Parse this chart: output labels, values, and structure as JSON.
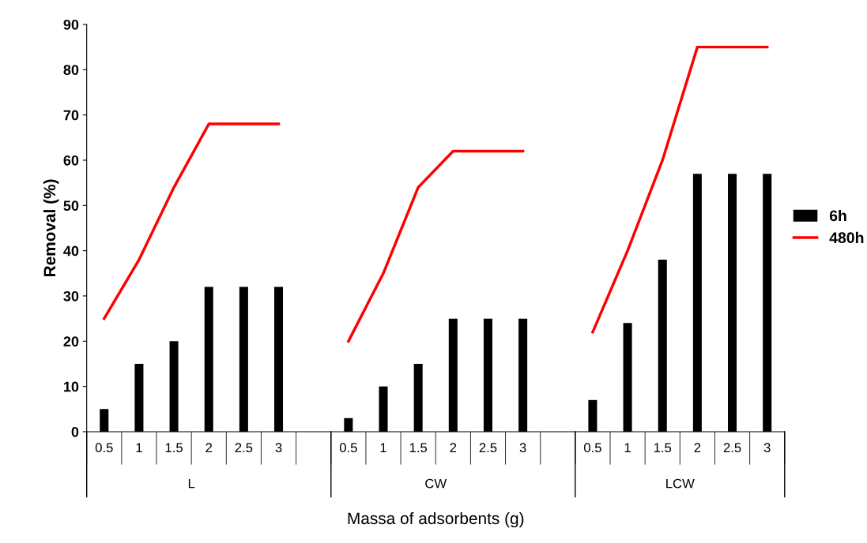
{
  "chart_data": {
    "type": "bar",
    "xlabel": "Massa of adsorbents (g)",
    "ylabel": "Removal (%)",
    "categories": [
      "0.5",
      "1",
      "1.5",
      "2",
      "2.5",
      "3",
      null,
      "0.5",
      "1",
      "1.5",
      "2",
      "2.5",
      "3",
      null,
      "0.5",
      "1",
      "1.5",
      "2",
      "2.5",
      "3"
    ],
    "series": [
      {
        "name": "6h",
        "color": "#000000",
        "values": [
          5,
          15,
          20,
          32,
          32,
          32,
          null,
          3,
          10,
          15,
          25,
          25,
          25,
          null,
          7,
          24,
          38,
          57,
          57,
          57
        ]
      },
      {
        "name": "480h",
        "type": "line",
        "color": "#ff0000",
        "values": [
          25,
          38,
          54,
          68,
          68,
          68,
          null,
          20,
          35,
          54,
          62,
          62,
          62,
          null,
          22,
          40,
          60,
          85,
          85,
          85
        ]
      }
    ],
    "annotations": [
      "L",
      "CW",
      "LCW"
    ],
    "ylim": [
      0,
      90
    ],
    "yticks": [
      0,
      10,
      20,
      30,
      40,
      50,
      60,
      70,
      80,
      90
    ],
    "grid": false,
    "legend": "right",
    "marker": "none",
    "line_style": "solid"
  }
}
